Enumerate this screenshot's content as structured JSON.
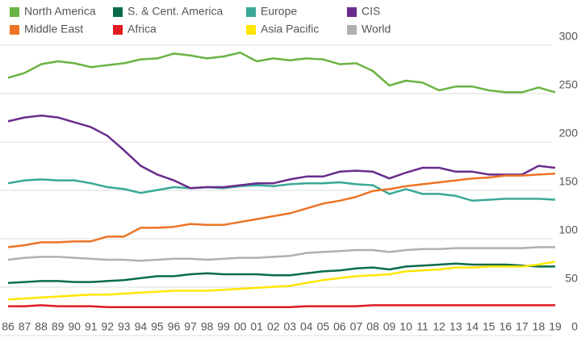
{
  "chart_data": {
    "type": "line",
    "categories": [
      "86",
      "87",
      "88",
      "89",
      "90",
      "91",
      "92",
      "93",
      "94",
      "95",
      "96",
      "97",
      "98",
      "99",
      "00",
      "01",
      "02",
      "03",
      "04",
      "05",
      "06",
      "07",
      "08",
      "09",
      "10",
      "11",
      "12",
      "13",
      "14",
      "15",
      "16",
      "17",
      "18",
      "19"
    ],
    "ylim": [
      0,
      300
    ],
    "yticks": [
      0,
      50,
      100,
      150,
      200,
      250,
      300
    ],
    "grid": true,
    "series": [
      {
        "name": "North America",
        "color": "#6ab344",
        "values": [
          258,
          263,
          272,
          275,
          273,
          269,
          271,
          273,
          277,
          278,
          283,
          281,
          278,
          280,
          284,
          275,
          278,
          276,
          278,
          277,
          272,
          273,
          265,
          250,
          255,
          253,
          245,
          249,
          249,
          245,
          243,
          243,
          248,
          243
        ]
      },
      {
        "name": "S. & Cent. America",
        "color": "#0a6b4b",
        "values": [
          46,
          47,
          48,
          48,
          47,
          47,
          48,
          49,
          51,
          53,
          53,
          55,
          56,
          55,
          55,
          55,
          54,
          54,
          56,
          58,
          59,
          61,
          62,
          60,
          63,
          64,
          65,
          66,
          65,
          65,
          65,
          64,
          63,
          63
        ]
      },
      {
        "name": "Europe",
        "color": "#3aa896",
        "values": [
          149,
          152,
          153,
          152,
          152,
          149,
          145,
          143,
          139,
          142,
          145,
          144,
          145,
          144,
          146,
          147,
          146,
          148,
          149,
          149,
          150,
          148,
          147,
          138,
          143,
          138,
          138,
          136,
          131,
          132,
          133,
          133,
          133,
          132
        ]
      },
      {
        "name": "CIS",
        "color": "#6a2c8e",
        "values": [
          213,
          217,
          219,
          217,
          212,
          207,
          198,
          183,
          167,
          158,
          152,
          144,
          145,
          145,
          147,
          149,
          149,
          153,
          156,
          156,
          161,
          162,
          161,
          154,
          160,
          165,
          165,
          161,
          161,
          158,
          158,
          158,
          167,
          165
        ]
      },
      {
        "name": "Middle East",
        "color": "#ec7424",
        "values": [
          83,
          85,
          88,
          88,
          89,
          89,
          94,
          94,
          103,
          103,
          104,
          107,
          106,
          106,
          109,
          112,
          115,
          118,
          123,
          128,
          131,
          135,
          141,
          143,
          146,
          148,
          150,
          152,
          154,
          155,
          157,
          157,
          158,
          159
        ]
      },
      {
        "name": "Africa",
        "color": "#e01b22",
        "values": [
          22,
          22,
          23,
          22,
          22,
          22,
          21,
          21,
          21,
          21,
          21,
          21,
          21,
          21,
          21,
          21,
          21,
          21,
          22,
          22,
          22,
          22,
          23,
          23,
          23,
          23,
          23,
          23,
          23,
          23,
          23,
          23,
          23,
          23
        ]
      },
      {
        "name": "Asia Pacific",
        "color": "#ffe500",
        "values": [
          29,
          30,
          31,
          32,
          33,
          34,
          34,
          35,
          36,
          37,
          38,
          38,
          38,
          39,
          40,
          41,
          42,
          43,
          46,
          49,
          51,
          53,
          54,
          55,
          58,
          59,
          60,
          62,
          62,
          63,
          63,
          63,
          65,
          68
        ]
      },
      {
        "name": "World",
        "color": "#b0b0b0",
        "values": [
          70,
          72,
          73,
          73,
          72,
          71,
          70,
          70,
          69,
          70,
          71,
          71,
          70,
          71,
          72,
          72,
          73,
          74,
          77,
          78,
          79,
          80,
          80,
          78,
          80,
          81,
          81,
          82,
          82,
          82,
          82,
          82,
          83,
          83
        ]
      }
    ]
  }
}
